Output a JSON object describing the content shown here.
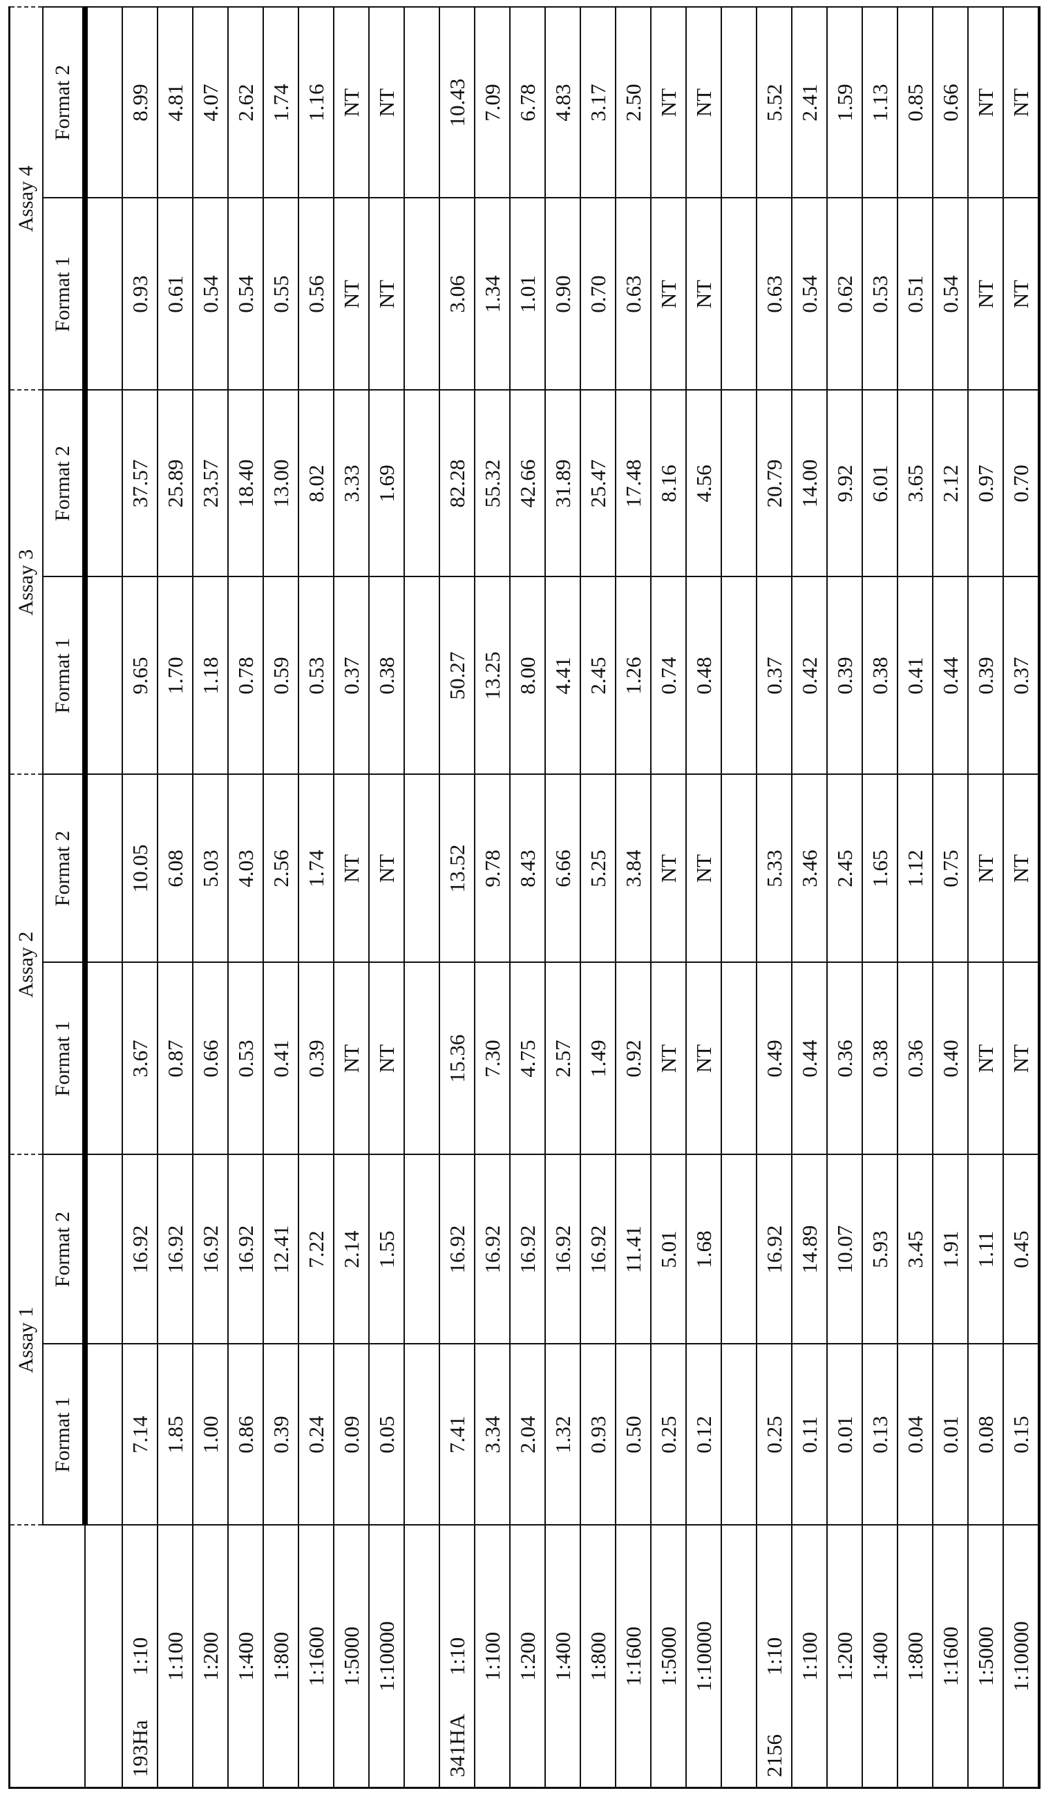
{
  "table": {
    "assays": [
      {
        "label": "Assay 1",
        "formats": [
          "Format 1",
          "Format 2"
        ]
      },
      {
        "label": "Assay 2",
        "formats": [
          "Format 1",
          "Format 2"
        ]
      },
      {
        "label": "Assay 3",
        "formats": [
          "Format 1",
          "Format 2"
        ]
      },
      {
        "label": "Assay 4",
        "formats": [
          "Format 1",
          "Format 2"
        ]
      }
    ],
    "samples": [
      {
        "name": "193Ha",
        "rows": [
          {
            "dilution": "1:10",
            "values": [
              "7.14",
              "16.92",
              "3.67",
              "10.05",
              "9.65",
              "37.57",
              "0.93",
              "8.99"
            ]
          },
          {
            "dilution": "1:100",
            "values": [
              "1.85",
              "16.92",
              "0.87",
              "6.08",
              "1.70",
              "25.89",
              "0.61",
              "4.81"
            ]
          },
          {
            "dilution": "1:200",
            "values": [
              "1.00",
              "16.92",
              "0.66",
              "5.03",
              "1.18",
              "23.57",
              "0.54",
              "4.07"
            ]
          },
          {
            "dilution": "1:400",
            "values": [
              "0.86",
              "16.92",
              "0.53",
              "4.03",
              "0.78",
              "18.40",
              "0.54",
              "2.62"
            ]
          },
          {
            "dilution": "1:800",
            "values": [
              "0.39",
              "12.41",
              "0.41",
              "2.56",
              "0.59",
              "13.00",
              "0.55",
              "1.74"
            ]
          },
          {
            "dilution": "1:1600",
            "values": [
              "0.24",
              "7.22",
              "0.39",
              "1.74",
              "0.53",
              "8.02",
              "0.56",
              "1.16"
            ]
          },
          {
            "dilution": "1:5000",
            "values": [
              "0.09",
              "2.14",
              "NT",
              "NT",
              "0.37",
              "3.33",
              "NT",
              "NT"
            ]
          },
          {
            "dilution": "1:10000",
            "values": [
              "0.05",
              "1.55",
              "NT",
              "NT",
              "0.38",
              "1.69",
              "NT",
              "NT"
            ]
          }
        ]
      },
      {
        "name": "341HA",
        "rows": [
          {
            "dilution": "1:10",
            "values": [
              "7.41",
              "16.92",
              "15.36",
              "13.52",
              "50.27",
              "82.28",
              "3.06",
              "10.43"
            ]
          },
          {
            "dilution": "1:100",
            "values": [
              "3.34",
              "16.92",
              "7.30",
              "9.78",
              "13.25",
              "55.32",
              "1.34",
              "7.09"
            ]
          },
          {
            "dilution": "1:200",
            "values": [
              "2.04",
              "16.92",
              "4.75",
              "8.43",
              "8.00",
              "42.66",
              "1.01",
              "6.78"
            ]
          },
          {
            "dilution": "1:400",
            "values": [
              "1.32",
              "16.92",
              "2.57",
              "6.66",
              "4.41",
              "31.89",
              "0.90",
              "4.83"
            ]
          },
          {
            "dilution": "1:800",
            "values": [
              "0.93",
              "16.92",
              "1.49",
              "5.25",
              "2.45",
              "25.47",
              "0.70",
              "3.17"
            ]
          },
          {
            "dilution": "1:1600",
            "values": [
              "0.50",
              "11.41",
              "0.92",
              "3.84",
              "1.26",
              "17.48",
              "0.63",
              "2.50"
            ]
          },
          {
            "dilution": "1:5000",
            "values": [
              "0.25",
              "5.01",
              "NT",
              "NT",
              "0.74",
              "8.16",
              "NT",
              "NT"
            ]
          },
          {
            "dilution": "1:10000",
            "values": [
              "0.12",
              "1.68",
              "NT",
              "NT",
              "0.48",
              "4.56",
              "NT",
              "NT"
            ]
          }
        ]
      },
      {
        "name": "2156",
        "rows": [
          {
            "dilution": "1:10",
            "values": [
              "0.25",
              "16.92",
              "0.49",
              "5.33",
              "0.37",
              "20.79",
              "0.63",
              "5.52"
            ]
          },
          {
            "dilution": "1:100",
            "values": [
              "0.11",
              "14.89",
              "0.44",
              "3.46",
              "0.42",
              "14.00",
              "0.54",
              "2.41"
            ]
          },
          {
            "dilution": "1:200",
            "values": [
              "0.01",
              "10.07",
              "0.36",
              "2.45",
              "0.39",
              "9.92",
              "0.62",
              "1.59"
            ]
          },
          {
            "dilution": "1:400",
            "values": [
              "0.13",
              "5.93",
              "0.38",
              "1.65",
              "0.38",
              "6.01",
              "0.53",
              "1.13"
            ]
          },
          {
            "dilution": "1:800",
            "values": [
              "0.04",
              "3.45",
              "0.36",
              "1.12",
              "0.41",
              "3.65",
              "0.51",
              "0.85"
            ]
          },
          {
            "dilution": "1:1600",
            "values": [
              "0.01",
              "1.91",
              "0.40",
              "0.75",
              "0.44",
              "2.12",
              "0.54",
              "0.66"
            ]
          },
          {
            "dilution": "1:5000",
            "values": [
              "0.08",
              "1.11",
              "NT",
              "NT",
              "0.39",
              "0.97",
              "NT",
              "NT"
            ]
          },
          {
            "dilution": "1:10000",
            "values": [
              "0.15",
              "0.45",
              "NT",
              "NT",
              "0.37",
              "0.70",
              "NT",
              "NT"
            ]
          }
        ]
      }
    ]
  }
}
